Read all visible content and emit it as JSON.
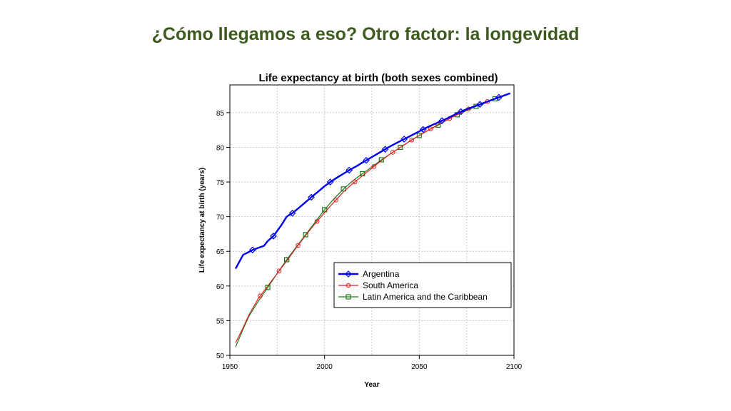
{
  "slide": {
    "title": "¿Cómo llegamos a eso? Otro factor: la longevidad"
  },
  "chart_data": {
    "type": "line",
    "title": "Life expectancy at birth (both sexes combined)",
    "xlabel": "Year",
    "ylabel": "Life expectancy at birth (years)",
    "xlim": [
      1950,
      2100
    ],
    "ylim": [
      50,
      89
    ],
    "xticks": [
      1950,
      2000,
      2050,
      2100
    ],
    "yticks": [
      50,
      55,
      60,
      65,
      70,
      75,
      80,
      85
    ],
    "grid": true,
    "legend_position": "bottom-right",
    "series": [
      {
        "name": "Argentina",
        "color": "#0000ee",
        "marker": "diamond",
        "x": [
          1953,
          1957,
          1960,
          1962,
          1965,
          1968,
          1970,
          1973,
          1977,
          1980,
          1983,
          1987,
          1990,
          1993,
          1997,
          2000,
          2003,
          2007,
          2010,
          2013,
          2017,
          2020,
          2025,
          2030,
          2035,
          2040,
          2045,
          2050,
          2055,
          2060,
          2065,
          2070,
          2075,
          2080,
          2085,
          2090,
          2095,
          2098
        ],
        "y": [
          62.5,
          64.5,
          64.9,
          65.2,
          65.5,
          65.8,
          66.5,
          67.2,
          68.7,
          70.0,
          70.5,
          71.4,
          72.1,
          72.8,
          73.7,
          74.4,
          75.0,
          75.7,
          76.2,
          76.7,
          77.3,
          77.8,
          78.6,
          79.4,
          80.2,
          80.9,
          81.6,
          82.3,
          83.0,
          83.6,
          84.2,
          84.9,
          85.5,
          86.0,
          86.5,
          87.0,
          87.5,
          87.8
        ],
        "marker_x": [
          1962,
          1973,
          1983,
          1993,
          2003,
          2013,
          2022,
          2032,
          2042,
          2052,
          2062,
          2072,
          2082,
          2092
        ]
      },
      {
        "name": "South America",
        "color": "#e02020",
        "marker": "circle",
        "x": [
          1953,
          1957,
          1960,
          1965,
          1970,
          1975,
          1980,
          1985,
          1990,
          1995,
          2000,
          2005,
          2010,
          2015,
          2020,
          2025,
          2030,
          2035,
          2040,
          2045,
          2050,
          2055,
          2060,
          2065,
          2070,
          2075,
          2080,
          2085,
          2090,
          2095,
          2098
        ],
        "y": [
          51.8,
          54.0,
          55.8,
          58.2,
          60.0,
          61.8,
          63.6,
          65.5,
          67.3,
          69.0,
          70.6,
          72.1,
          73.6,
          74.8,
          75.9,
          77.0,
          78.1,
          79.1,
          80.0,
          80.9,
          81.7,
          82.5,
          83.3,
          84.0,
          84.7,
          85.4,
          86.0,
          86.5,
          87.0,
          87.5,
          87.8
        ],
        "marker_x": [
          1966,
          1976,
          1986,
          1996,
          2006,
          2016,
          2026,
          2036,
          2046,
          2056,
          2066,
          2076,
          2086
        ]
      },
      {
        "name": "Latin America and the Caribbean",
        "color": "#1a7a1a",
        "marker": "square",
        "x": [
          1953,
          1957,
          1960,
          1965,
          1970,
          1975,
          1980,
          1985,
          1990,
          1995,
          2000,
          2005,
          2010,
          2015,
          2020,
          2025,
          2030,
          2035,
          2040,
          2045,
          2050,
          2055,
          2060,
          2065,
          2070,
          2075,
          2080,
          2085,
          2090,
          2095,
          2098
        ],
        "y": [
          51.2,
          53.8,
          55.6,
          57.8,
          59.8,
          61.8,
          63.8,
          65.6,
          67.4,
          69.2,
          71.0,
          72.6,
          74.0,
          75.2,
          76.2,
          77.2,
          78.2,
          79.1,
          80.0,
          80.9,
          81.7,
          82.5,
          83.2,
          84.0,
          84.7,
          85.3,
          85.9,
          86.4,
          87.0,
          87.5,
          87.8
        ],
        "marker_x": [
          1970,
          1980,
          1990,
          2000,
          2010,
          2020,
          2030,
          2040,
          2050,
          2060,
          2070,
          2080,
          2090
        ]
      }
    ]
  }
}
